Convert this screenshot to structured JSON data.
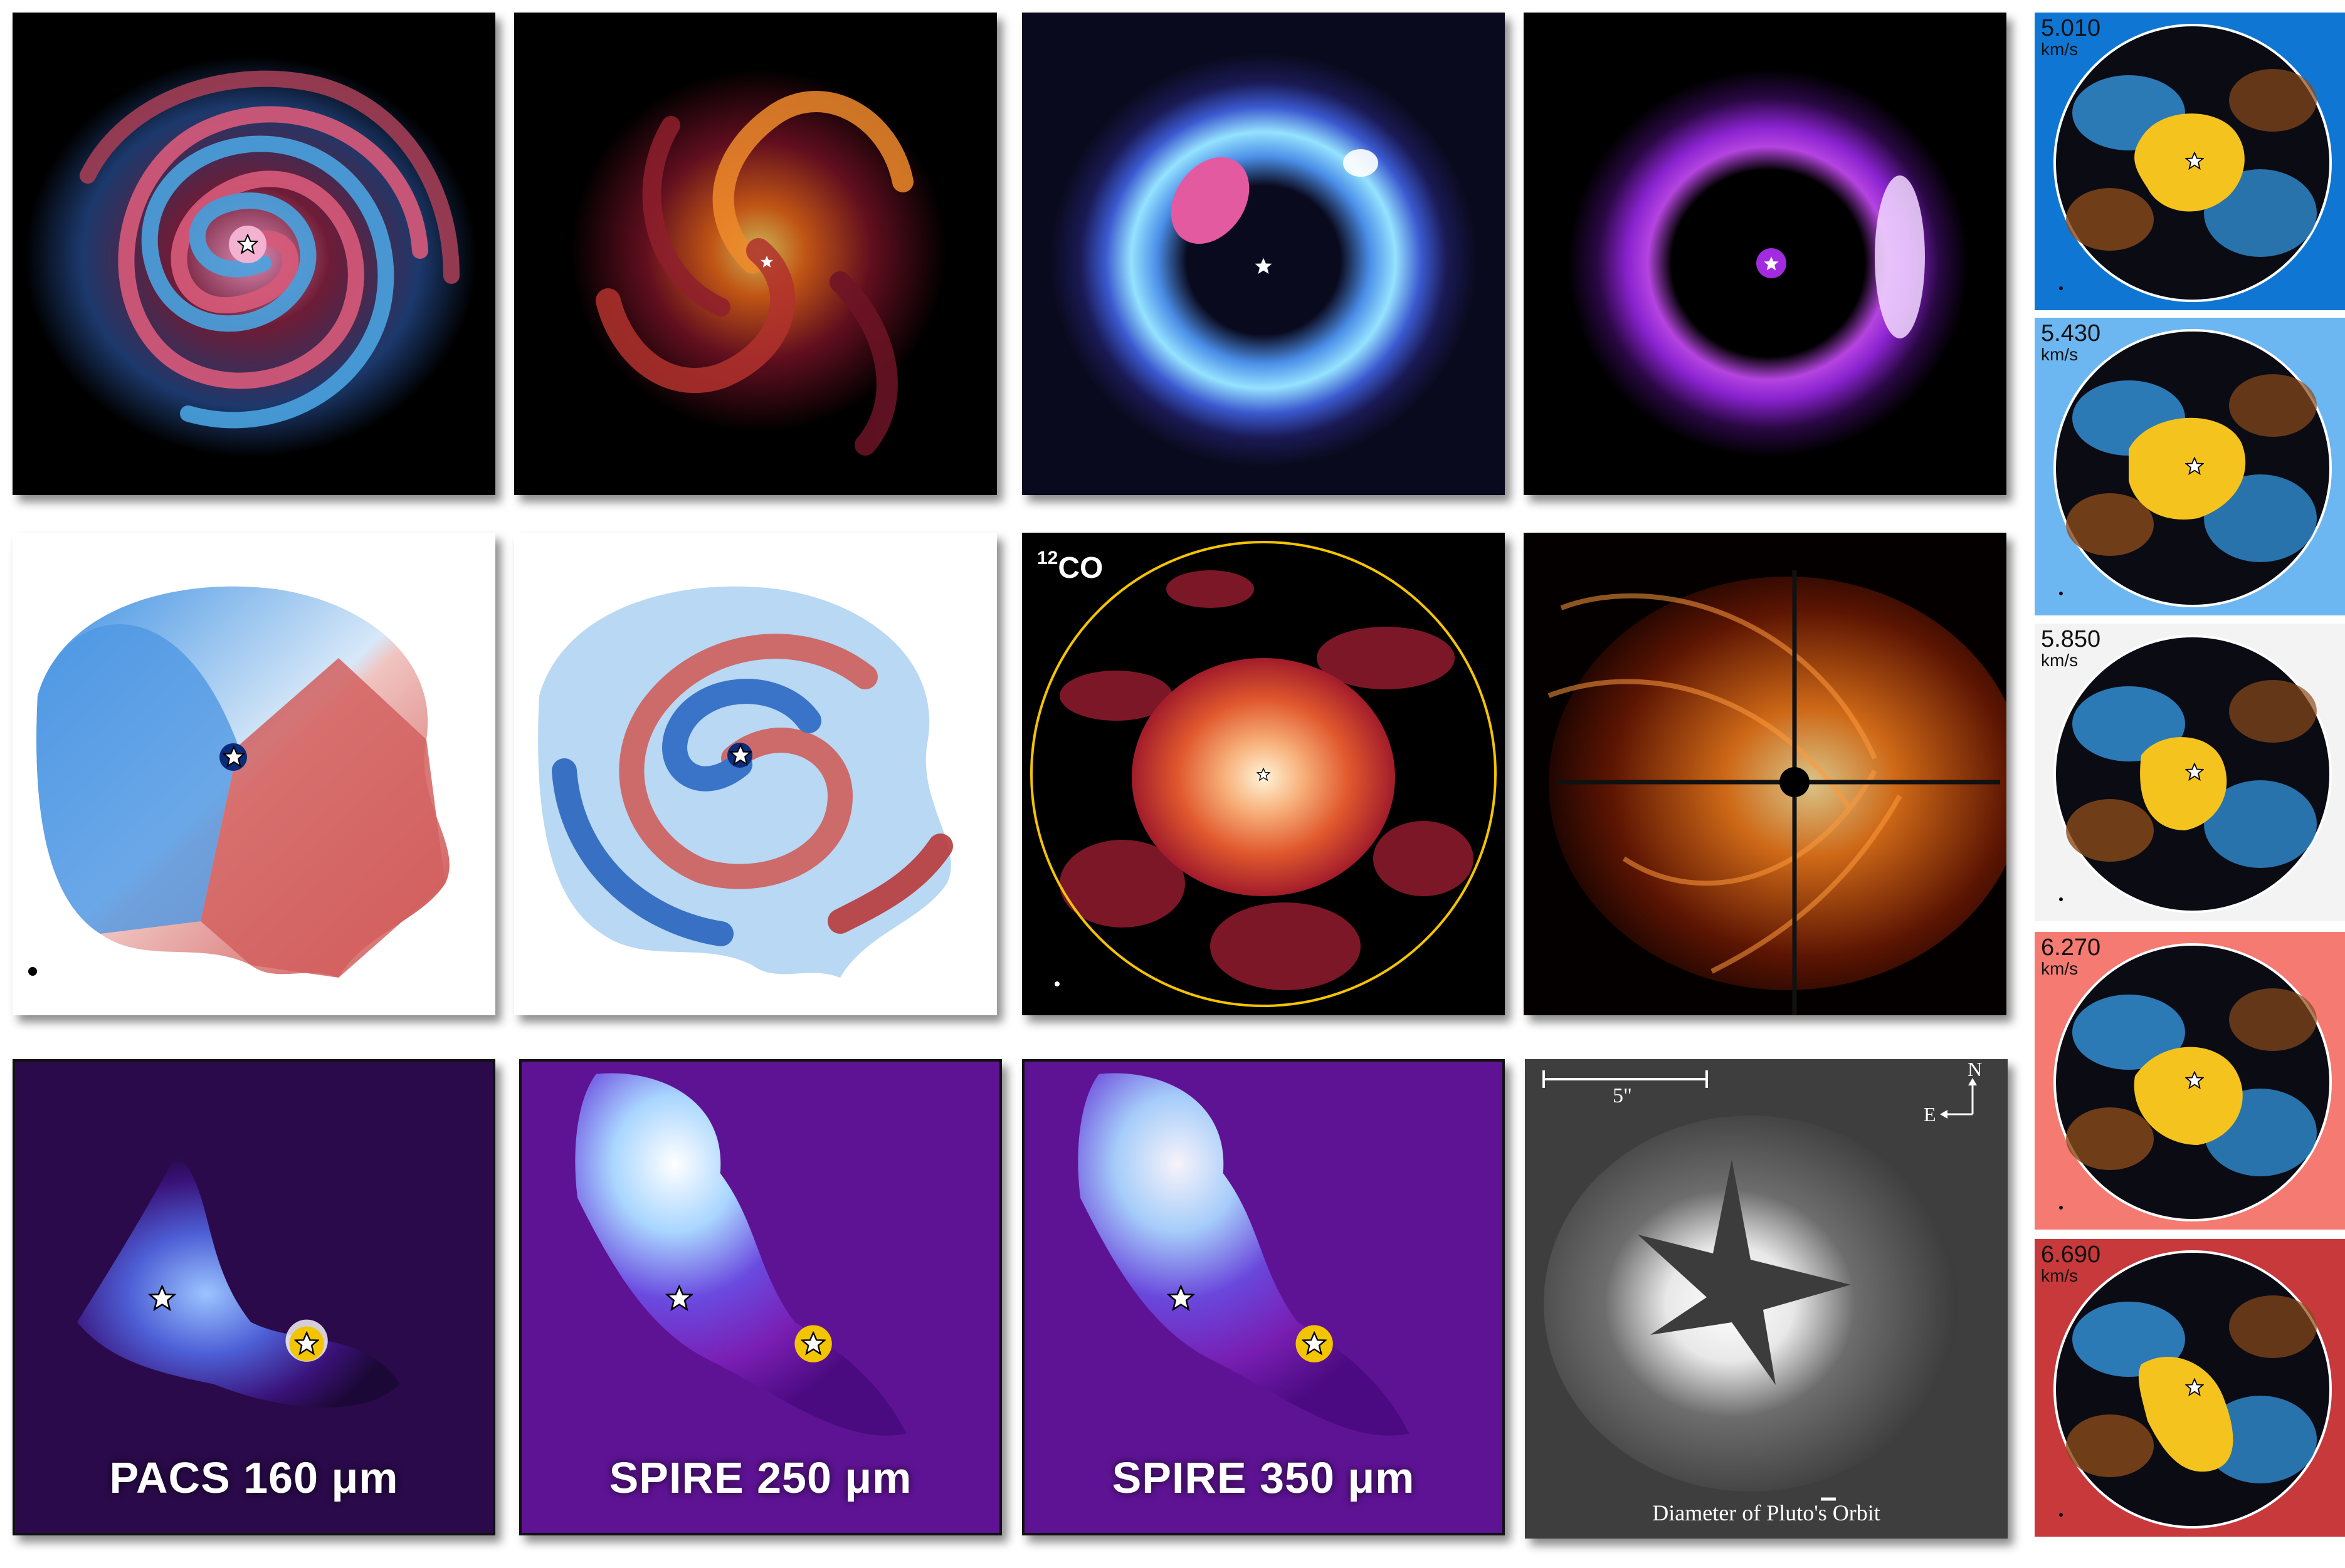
{
  "panels": {
    "co_label": {
      "superscript": "12",
      "main": "CO"
    },
    "band_labels": {
      "pacs": "PACS 160 μm",
      "spire250": "SPIRE 250 μm",
      "spire350": "SPIRE 350 μm"
    },
    "scale_bar_label": "5\"",
    "compass": {
      "north": "N",
      "east": "E"
    },
    "pluto_caption": "Diameter of Pluto's Orbit"
  },
  "velocity_channels": [
    {
      "value": "5.010",
      "unit": "km/s",
      "bg": "#0f77d3"
    },
    {
      "value": "5.430",
      "unit": "km/s",
      "bg": "#6cb7f2"
    },
    {
      "value": "5.850",
      "unit": "km/s",
      "bg": "#f3f3f3"
    },
    {
      "value": "6.270",
      "unit": "km/s",
      "bg": "#f47a72"
    },
    {
      "value": "6.690",
      "unit": "km/s",
      "bg": "#c8393c"
    }
  ]
}
